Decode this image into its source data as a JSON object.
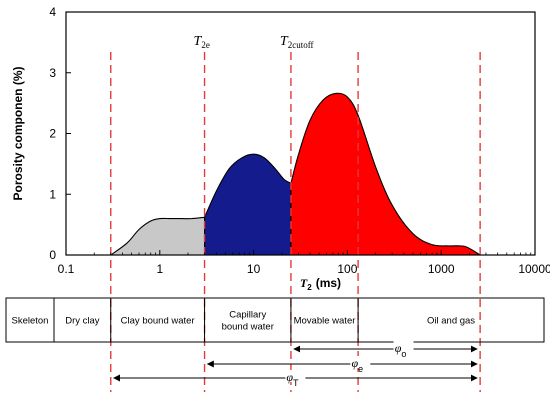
{
  "chart_data": {
    "type": "area",
    "xscale": "log",
    "xlim": [
      0.1,
      10000
    ],
    "ylim": [
      0,
      4
    ],
    "xlabel": {
      "symbol": "T",
      "sub": "2",
      "unit": "(ms)"
    },
    "ylabel": "Porosity componen (%)",
    "xticks": [
      0.1,
      1,
      10,
      100,
      1000,
      10000
    ],
    "xtick_labels": [
      "0.1",
      "1",
      "10",
      "100",
      "1000",
      "10000"
    ],
    "yticks": [
      0,
      1,
      2,
      3,
      4
    ],
    "ytick_labels": [
      "0",
      "1",
      "2",
      "3",
      "4"
    ],
    "cutoff_lines": [
      {
        "x": 0.3,
        "label": null
      },
      {
        "x": 3,
        "label": {
          "symbol": "T",
          "sub": "2e"
        }
      },
      {
        "x": 25,
        "label": {
          "symbol": "T",
          "sub": "2cutoff"
        }
      },
      {
        "x": 130,
        "label": null
      },
      {
        "x": 2600,
        "label": null
      }
    ],
    "series": [
      {
        "color": "#c8c8c8",
        "x": [
          0.3,
          0.45,
          0.6,
          0.8,
          1.0,
          1.3,
          1.7,
          2.2,
          3.0
        ],
        "y": [
          0,
          0.2,
          0.42,
          0.56,
          0.6,
          0.6,
          0.6,
          0.6,
          0.62
        ]
      },
      {
        "color": "#141b8c",
        "x": [
          3.0,
          4.0,
          5.5,
          7.5,
          10,
          13,
          17,
          21,
          25
        ],
        "y": [
          0.62,
          1.05,
          1.42,
          1.6,
          1.66,
          1.6,
          1.42,
          1.25,
          1.18
        ]
      },
      {
        "color": "#ff0000",
        "x": [
          25,
          30,
          40,
          55,
          75,
          100,
          130,
          200,
          300,
          500,
          800,
          1200,
          1800,
          2600
        ],
        "y": [
          1.18,
          1.65,
          2.22,
          2.55,
          2.66,
          2.6,
          2.3,
          1.45,
          0.82,
          0.35,
          0.17,
          0.15,
          0.14,
          0
        ]
      }
    ]
  },
  "table": {
    "cells": [
      "Skeleton",
      "Dry clay",
      "Clay bound water",
      "Capillary bound water",
      "Movable water",
      "Oil and gas"
    ],
    "cell_lines": [
      [
        "Skeleton"
      ],
      [
        "Dry clay"
      ],
      [
        "Clay bound water"
      ],
      [
        "Capillary",
        "bound water"
      ],
      [
        "Movable water"
      ],
      [
        "Oil and gas"
      ]
    ]
  },
  "ranges": [
    {
      "symbol": "φ",
      "sub": "o",
      "from": 25,
      "to": 2600
    },
    {
      "symbol": "φ",
      "sub": "e",
      "from": 3,
      "to": 2600
    },
    {
      "symbol": "φ",
      "sub": "T",
      "from": 0.3,
      "to": 2600
    }
  ],
  "colors": {
    "cutoff_line": "#e33b3b",
    "axes": "#000000"
  }
}
